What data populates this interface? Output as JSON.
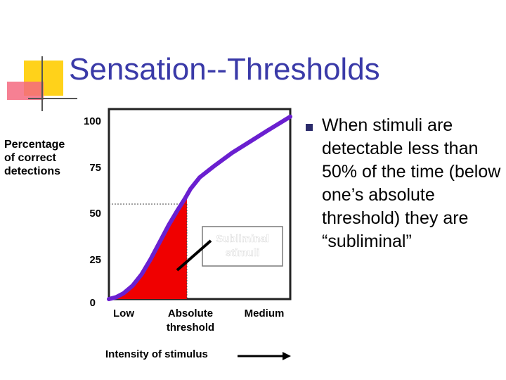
{
  "slide": {
    "title": "Sensation--Thresholds",
    "bullet_text": "When stimuli are detectable less than 50% of the time (below one’s absolute threshold) they are “subliminal”"
  },
  "chart_data": {
    "type": "line",
    "ylabel": "Percentage of correct detections",
    "xlabel": "Intensity of stimulus",
    "yticks": [
      "100",
      "75",
      "50",
      "25",
      "0"
    ],
    "ylim": [
      0,
      100
    ],
    "xlim": [
      0,
      100
    ],
    "x_categories": [
      {
        "label": "Low",
        "x": 8
      },
      {
        "label": "Absolute threshold",
        "x": 44
      },
      {
        "label": "Medium",
        "x": 83
      }
    ],
    "series": [
      {
        "color": "#6a1fd0",
        "x": [
          0,
          4,
          8,
          13,
          18,
          23,
          28,
          33,
          38,
          42,
          45,
          50,
          58,
          68,
          78,
          88,
          100
        ],
        "y": [
          0,
          1,
          3,
          7,
          13,
          21,
          30,
          39,
          47,
          53,
          58,
          64,
          70,
          77,
          83,
          89,
          96
        ]
      }
    ],
    "threshold": {
      "x": 43,
      "y": 50
    },
    "shaded_region_color": "#f00000",
    "annotation": "Subliminal stimuli"
  },
  "colors": {
    "title": "#3a3aa8",
    "curve": "#6a1fd0",
    "shade": "#f00000",
    "frame": "#222222"
  }
}
